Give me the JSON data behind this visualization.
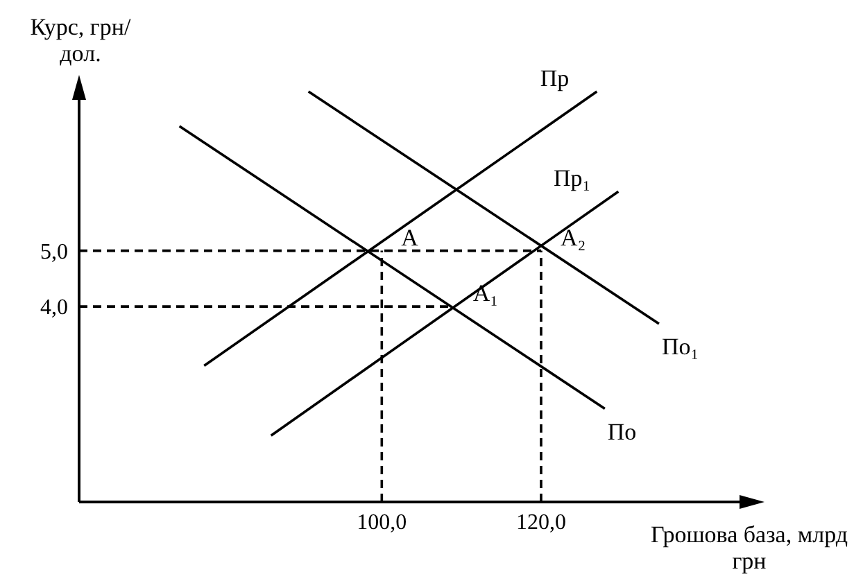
{
  "chart_data": {
    "type": "line",
    "xlabel": "Грошова база, млрд грн",
    "ylabel": "Курс, грн/дол.",
    "xlim": [
      62,
      147
    ],
    "ylim": [
      0.5,
      8
    ],
    "xticks": [
      {
        "value": 100,
        "label": "100,0"
      },
      {
        "value": 120,
        "label": "120,0"
      }
    ],
    "yticks": [
      {
        "value": 4,
        "label": "4,0"
      },
      {
        "value": 5,
        "label": "5,0"
      }
    ],
    "grid": false,
    "legend": false,
    "marker": "none",
    "series": [
      {
        "name": "Пр",
        "color": "#000000",
        "x": [
          77.7,
          127.0
        ],
        "values": [
          2.94,
          7.85
        ]
      },
      {
        "name": "Пр₁",
        "color": "#000000",
        "x": [
          86.1,
          129.7
        ],
        "values": [
          1.69,
          6.06
        ]
      },
      {
        "name": "По",
        "color": "#000000",
        "x": [
          74.6,
          128.0
        ],
        "values": [
          7.23,
          2.17
        ]
      },
      {
        "name": "По₁",
        "color": "#000000",
        "x": [
          90.8,
          134.8
        ],
        "values": [
          7.85,
          3.69
        ]
      },
      {
        "color": "#000000",
        "line_style": "dashed",
        "x": [
          62,
          120
        ],
        "values": [
          5,
          5
        ]
      },
      {
        "color": "#000000",
        "line_style": "dashed",
        "x": [
          62,
          109
        ],
        "values": [
          4,
          4
        ]
      },
      {
        "color": "#000000",
        "line_style": "dashed",
        "x": [
          100,
          100
        ],
        "values": [
          0.5,
          5
        ]
      },
      {
        "color": "#000000",
        "line_style": "dashed",
        "x": [
          120,
          120
        ],
        "values": [
          0.5,
          5
        ]
      }
    ],
    "annotations": [
      {
        "text": "A",
        "x": 100,
        "y": 5
      },
      {
        "text": "A₁",
        "x": 109,
        "y": 4
      },
      {
        "text": "A₂",
        "x": 120,
        "y": 5
      }
    ]
  }
}
